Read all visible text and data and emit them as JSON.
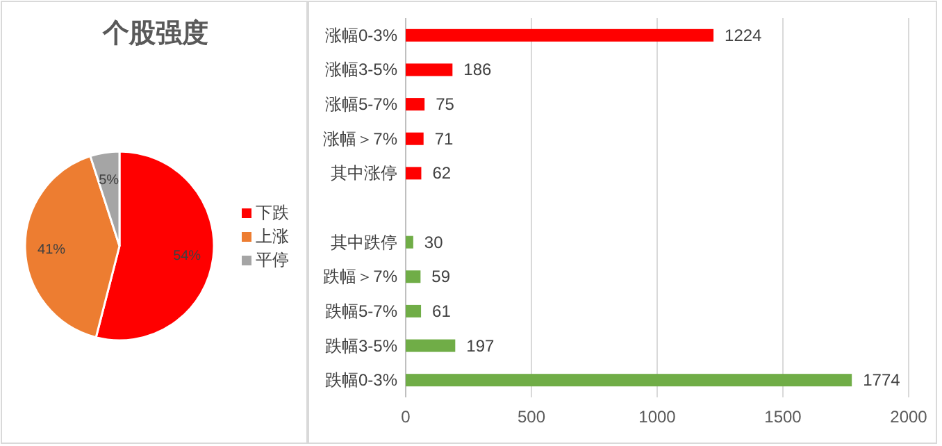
{
  "chart_data": [
    {
      "type": "pie",
      "title": "个股强度",
      "categories": [
        "下跌",
        "上涨",
        "平停"
      ],
      "values": [
        54,
        41,
        5
      ],
      "colors": [
        "#ff0000",
        "#ed7d31",
        "#a5a5a5"
      ],
      "value_labels": [
        "54%",
        "41%",
        "5%"
      ],
      "legend": "right"
    },
    {
      "type": "bar",
      "orientation": "horizontal",
      "categories": [
        "涨幅0-3%",
        "涨幅3-5%",
        "涨幅5-7%",
        "涨幅＞7%",
        "其中涨停",
        null,
        "其中跌停",
        "跌幅＞7%",
        "跌幅5-7%",
        "跌幅3-5%",
        "跌幅0-3%"
      ],
      "values": [
        1224,
        186,
        75,
        71,
        62,
        null,
        30,
        59,
        61,
        197,
        1774
      ],
      "colors": [
        "#ff0000",
        "#ff0000",
        "#ff0000",
        "#ff0000",
        "#ff0000",
        "#70ad47",
        "#70ad47",
        "#70ad47",
        "#70ad47",
        "#70ad47",
        "#70ad47"
      ],
      "xlim": [
        0,
        2000
      ],
      "xticks": [
        0,
        500,
        1000,
        1500,
        2000
      ],
      "grid": "x",
      "data_labels": true
    }
  ]
}
